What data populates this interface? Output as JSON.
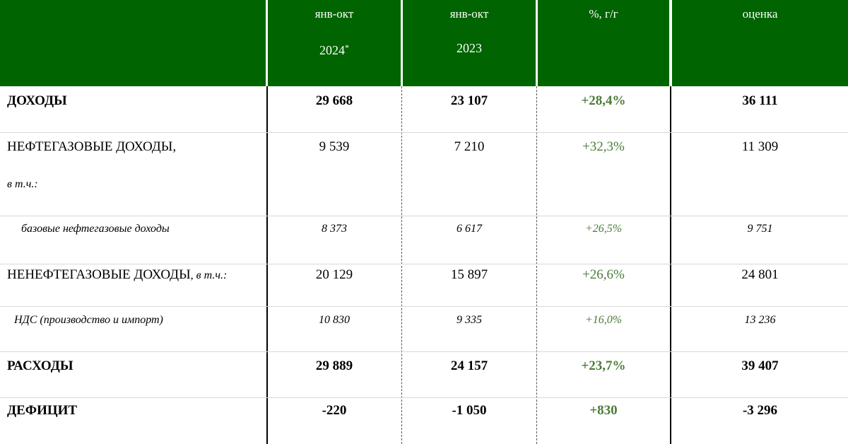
{
  "header": {
    "columns": [
      {
        "line1": "",
        "line2": "",
        "sup": ""
      },
      {
        "line1": "янв-окт",
        "line2": "2024",
        "sup": "*"
      },
      {
        "line1": "янв-окт",
        "line2": "2023",
        "sup": ""
      },
      {
        "line1": "%, г/г",
        "line2": "",
        "sup": ""
      },
      {
        "line1": "оценка",
        "line2": "",
        "sup": ""
      }
    ]
  },
  "rows": [
    {
      "label": "ДОХОДЫ",
      "label_suffix": "",
      "sublabel": "",
      "v2024": "29 668",
      "v2023": "23 107",
      "pct": "+28,4%",
      "estimate": "36 111"
    },
    {
      "label": "НЕФТЕГАЗОВЫЕ ДОХОДЫ,",
      "label_suffix": "",
      "sublabel": "в т.ч.:",
      "v2024": "9 539",
      "v2023": "7 210",
      "pct": "+32,3%",
      "estimate": "11 309"
    },
    {
      "label": "базовые нефтегазовые доходы",
      "label_suffix": "",
      "sublabel": "",
      "v2024": "8 373",
      "v2023": "6 617",
      "pct": "+26,5%",
      "estimate": "9 751"
    },
    {
      "label": "НЕНЕФТЕГАЗОВЫЕ ДОХОДЫ",
      "label_suffix": ", в т.ч.:",
      "sublabel": "",
      "v2024": "20 129",
      "v2023": "15 897",
      "pct": "+26,6%",
      "estimate": "24 801"
    },
    {
      "label": "НДС (производство и импорт)",
      "label_suffix": "",
      "sublabel": "",
      "v2024": "10 830",
      "v2023": "9 335",
      "pct": "+16,0%",
      "estimate": "13 236"
    },
    {
      "label": "РАСХОДЫ",
      "label_suffix": "",
      "sublabel": "",
      "v2024": "29 889",
      "v2023": "24 157",
      "pct": "+23,7%",
      "estimate": "39 407"
    },
    {
      "label": "ДЕФИЦИТ",
      "label_suffix": "",
      "sublabel": "",
      "v2024": "-220",
      "v2023": "-1 050",
      "pct": "+830",
      "estimate": "-3 296"
    }
  ],
  "colors": {
    "header_bg": "#006400",
    "header_text": "#ffffff",
    "pct_text": "#4a7c36"
  }
}
